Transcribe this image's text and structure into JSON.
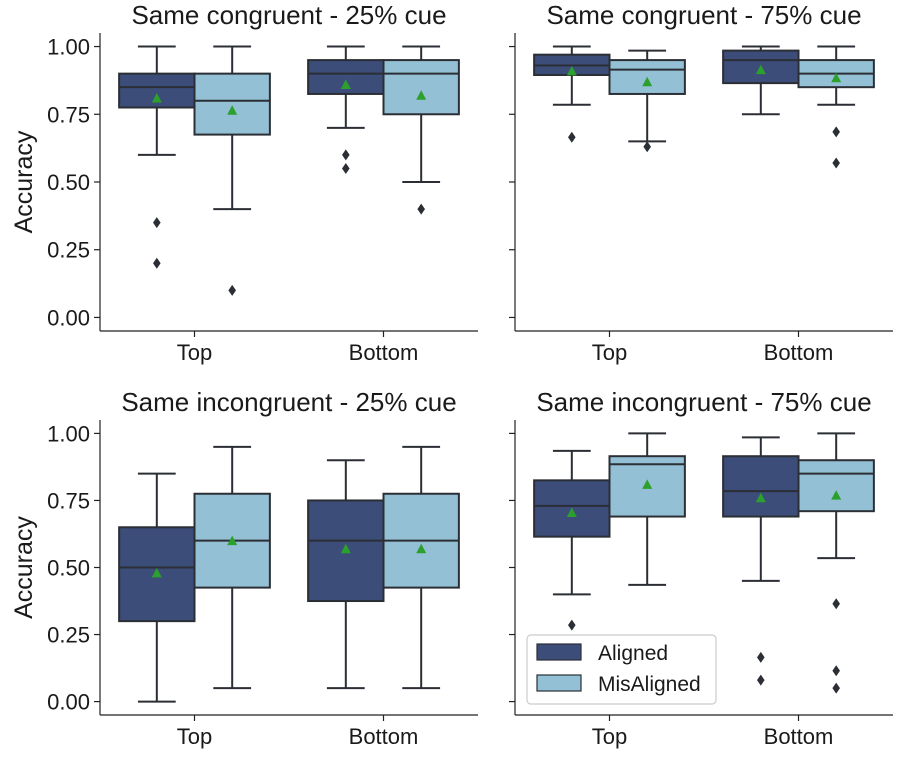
{
  "colors": {
    "aligned": "#3b4d78",
    "misaligned": "#93c0d4",
    "edge": "#2b2f35",
    "mean": "#2ca02c"
  },
  "legend": {
    "location": "lower-left of bottom-right panel",
    "items": [
      {
        "label": "Aligned",
        "color": "#3b4d78"
      },
      {
        "label": "MisAligned",
        "color": "#93c0d4"
      }
    ]
  },
  "chart_data": [
    {
      "type": "box",
      "title": "Same congruent - 25% cue",
      "ylabel": "Accuracy",
      "ylim": [
        -0.05,
        1.05
      ],
      "yticks": [
        "0.00",
        "0.25",
        "0.50",
        "0.75",
        "1.00"
      ],
      "categories": [
        "Top",
        "Bottom"
      ],
      "series": [
        {
          "name": "Aligned",
          "boxes": [
            {
              "whislo": 0.6,
              "q1": 0.775,
              "med": 0.85,
              "q3": 0.9,
              "whishi": 1.0,
              "mean": 0.81,
              "fliers": [
                0.35,
                0.2
              ]
            },
            {
              "whislo": 0.7,
              "q1": 0.825,
              "med": 0.9,
              "q3": 0.95,
              "whishi": 1.0,
              "mean": 0.86,
              "fliers": [
                0.6,
                0.55
              ]
            }
          ]
        },
        {
          "name": "MisAligned",
          "boxes": [
            {
              "whislo": 0.4,
              "q1": 0.675,
              "med": 0.8,
              "q3": 0.9,
              "whishi": 1.0,
              "mean": 0.765,
              "fliers": [
                0.1
              ]
            },
            {
              "whislo": 0.5,
              "q1": 0.75,
              "med": 0.9,
              "q3": 0.95,
              "whishi": 1.0,
              "mean": 0.82,
              "fliers": [
                0.4
              ]
            }
          ]
        }
      ]
    },
    {
      "type": "box",
      "title": "Same congruent - 75% cue",
      "ylabel": "",
      "ylim": [
        -0.05,
        1.05
      ],
      "yticks": [
        "",
        "",
        "",
        "",
        ""
      ],
      "categories": [
        "Top",
        "Bottom"
      ],
      "series": [
        {
          "name": "Aligned",
          "boxes": [
            {
              "whislo": 0.785,
              "q1": 0.895,
              "med": 0.93,
              "q3": 0.97,
              "whishi": 1.0,
              "mean": 0.91,
              "fliers": [
                0.665
              ]
            },
            {
              "whislo": 0.75,
              "q1": 0.865,
              "med": 0.95,
              "q3": 0.985,
              "whishi": 1.0,
              "mean": 0.915,
              "fliers": []
            }
          ]
        },
        {
          "name": "MisAligned",
          "boxes": [
            {
              "whislo": 0.65,
              "q1": 0.825,
              "med": 0.915,
              "q3": 0.95,
              "whishi": 0.985,
              "mean": 0.87,
              "fliers": [
                0.63
              ]
            },
            {
              "whislo": 0.785,
              "q1": 0.85,
              "med": 0.9,
              "q3": 0.95,
              "whishi": 1.0,
              "mean": 0.885,
              "fliers": [
                0.685,
                0.57
              ]
            }
          ]
        }
      ]
    },
    {
      "type": "box",
      "title": "Same incongruent - 25% cue",
      "ylabel": "Accuracy",
      "ylim": [
        -0.05,
        1.05
      ],
      "yticks": [
        "0.00",
        "0.25",
        "0.50",
        "0.75",
        "1.00"
      ],
      "categories": [
        "Top",
        "Bottom"
      ],
      "series": [
        {
          "name": "Aligned",
          "boxes": [
            {
              "whislo": 0.0,
              "q1": 0.3,
              "med": 0.5,
              "q3": 0.65,
              "whishi": 0.85,
              "mean": 0.48,
              "fliers": []
            },
            {
              "whislo": 0.05,
              "q1": 0.375,
              "med": 0.6,
              "q3": 0.75,
              "whishi": 0.9,
              "mean": 0.57,
              "fliers": []
            }
          ]
        },
        {
          "name": "MisAligned",
          "boxes": [
            {
              "whislo": 0.05,
              "q1": 0.425,
              "med": 0.6,
              "q3": 0.775,
              "whishi": 0.95,
              "mean": 0.6,
              "fliers": []
            },
            {
              "whislo": 0.05,
              "q1": 0.425,
              "med": 0.6,
              "q3": 0.775,
              "whishi": 0.95,
              "mean": 0.57,
              "fliers": []
            }
          ]
        }
      ]
    },
    {
      "type": "box",
      "title": "Same incongruent - 75% cue",
      "ylabel": "",
      "ylim": [
        -0.05,
        1.05
      ],
      "yticks": [
        "",
        "",
        "",
        "",
        ""
      ],
      "categories": [
        "Top",
        "Bottom"
      ],
      "series": [
        {
          "name": "Aligned",
          "boxes": [
            {
              "whislo": 0.4,
              "q1": 0.615,
              "med": 0.73,
              "q3": 0.825,
              "whishi": 0.935,
              "mean": 0.705,
              "fliers": [
                0.285
              ]
            },
            {
              "whislo": 0.45,
              "q1": 0.69,
              "med": 0.785,
              "q3": 0.915,
              "whishi": 0.985,
              "mean": 0.76,
              "fliers": [
                0.165,
                0.08
              ]
            }
          ]
        },
        {
          "name": "MisAligned",
          "boxes": [
            {
              "whislo": 0.435,
              "q1": 0.69,
              "med": 0.885,
              "q3": 0.915,
              "whishi": 1.0,
              "mean": 0.81,
              "fliers": []
            },
            {
              "whislo": 0.535,
              "q1": 0.71,
              "med": 0.85,
              "q3": 0.9,
              "whishi": 1.0,
              "mean": 0.77,
              "fliers": [
                0.365,
                0.115,
                0.05
              ]
            }
          ]
        }
      ]
    }
  ]
}
